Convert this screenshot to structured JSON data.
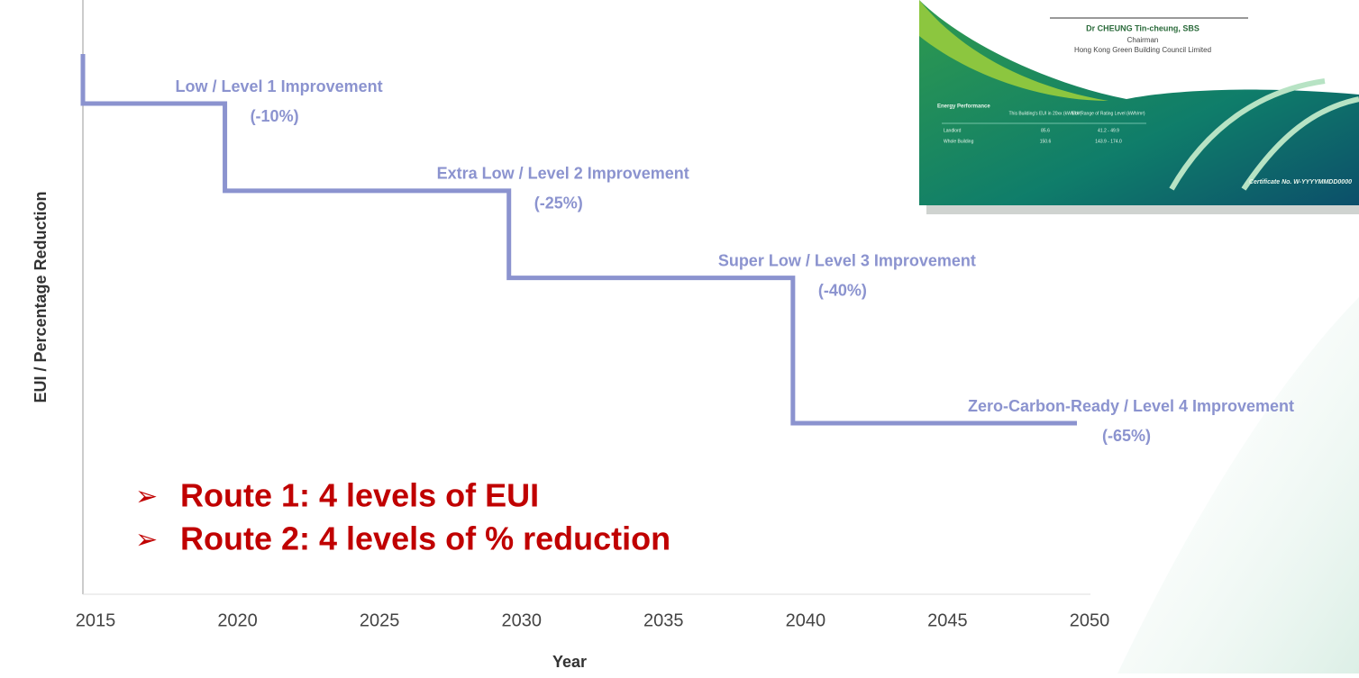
{
  "chart_data": {
    "type": "step",
    "xlabel": "Year",
    "ylabel": "EUI / Percentage Reduction",
    "x": [
      2015,
      2020,
      2030,
      2040
    ],
    "values": [
      -10,
      -25,
      -40,
      -65
    ],
    "value_labels": [
      "(-10%)",
      "(-25%)",
      "(-40%)",
      "(-65%)"
    ],
    "step_labels": [
      "Low / Level 1 Improvement",
      "Extra Low  / Level 2 Improvement",
      "Super Low / Level 3 Improvement",
      "Zero-Carbon-Ready / Level 4 Improvement"
    ],
    "color": "#8b93cf",
    "xlim": [
      2015,
      2050
    ],
    "xticks": [
      2015,
      2020,
      2025,
      2030,
      2035,
      2040,
      2045,
      2050
    ],
    "annotations": [
      "Route 1: 4 levels of EUI",
      "Route 2: 4 levels of % reduction"
    ]
  },
  "certificate": {
    "signatory": "Dr CHEUNG Tin-cheung, SBS",
    "role": "Chairman",
    "organisation": "Hong Kong Green Building Council Limited",
    "table_title": "Energy Performance",
    "headers": [
      "This Building's EUI in 20xx (kWh/m²)",
      "EUI Range of Rating Level (kWh/m²)"
    ],
    "rows": [
      [
        "Landlord",
        "85.6",
        "41.2 - 49.9"
      ],
      [
        "Whole Building",
        "150.6",
        "143.9 - 174.0"
      ]
    ],
    "certificate_no": "Certificate No. W-YYYYMMDD0000"
  }
}
